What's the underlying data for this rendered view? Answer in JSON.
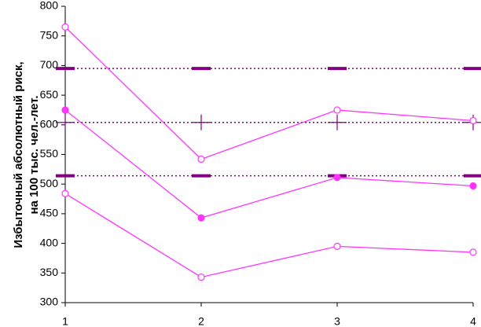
{
  "chart_data": {
    "type": "line",
    "y_label": [
      "Избыточный абсолютный риск,",
      "на 100 тыс. чел.-лет."
    ],
    "x": [
      1,
      2,
      3,
      4
    ],
    "xlim": [
      1,
      4
    ],
    "xticks": [
      1,
      2,
      3,
      4
    ],
    "ylim": [
      300,
      800
    ],
    "yticks": [
      300,
      350,
      400,
      450,
      500,
      550,
      600,
      650,
      700,
      750,
      800
    ],
    "series": [
      {
        "color": "#ff33ff",
        "marker": "open-circle",
        "values": [
          765,
          542,
          625,
          607
        ]
      },
      {
        "color": "#ff33ff",
        "marker": "filled-circle",
        "values": [
          625,
          443,
          511,
          497
        ]
      },
      {
        "color": "#ff33ff",
        "marker": "open-circle",
        "values": [
          484,
          343,
          395,
          385
        ]
      }
    ],
    "reference_lines": [
      {
        "value": 695,
        "color": "#800080",
        "marker": "dash"
      },
      {
        "value": 604,
        "color": "#800080",
        "marker": "plus"
      },
      {
        "value": 514,
        "color": "#800080",
        "marker": "dash"
      }
    ]
  }
}
